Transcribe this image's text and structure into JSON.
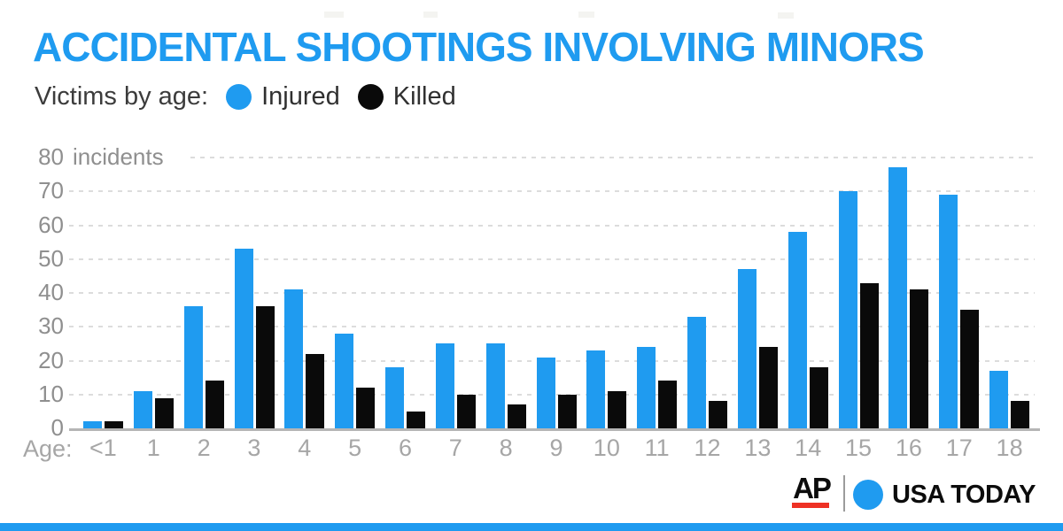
{
  "chart_data": {
    "type": "bar",
    "title": "ACCIDENTAL SHOOTINGS INVOLVING MINORS",
    "subtitle": "Victims by age:",
    "categories": [
      "<1",
      "1",
      "2",
      "3",
      "4",
      "5",
      "6",
      "7",
      "8",
      "9",
      "10",
      "11",
      "12",
      "13",
      "14",
      "15",
      "16",
      "17",
      "18"
    ],
    "series": [
      {
        "name": "Injured",
        "color": "#1f9bf0",
        "values": [
          2,
          11,
          36,
          53,
          41,
          28,
          18,
          25,
          25,
          21,
          23,
          24,
          33,
          47,
          58,
          70,
          77,
          69,
          17
        ]
      },
      {
        "name": "Killed",
        "color": "#0a0a0a",
        "values": [
          2,
          9,
          14,
          36,
          22,
          12,
          5,
          10,
          7,
          10,
          11,
          14,
          8,
          24,
          18,
          43,
          41,
          35,
          8
        ]
      }
    ],
    "xlabel": "Age:",
    "ylabel": "incidents",
    "y_top_label": "80 incidents",
    "yticks": [
      0,
      10,
      20,
      30,
      40,
      50,
      60,
      70,
      80
    ],
    "ylim": [
      0,
      80
    ],
    "ytick_interval": 10,
    "grid": "horizontal-dashed",
    "legend_position": "top"
  },
  "footer": {
    "ap_logo_text": "AP",
    "usatoday_logo_text": "USA TODAY",
    "accent_red": "#ee3124",
    "accent_blue": "#1f9bf0"
  }
}
